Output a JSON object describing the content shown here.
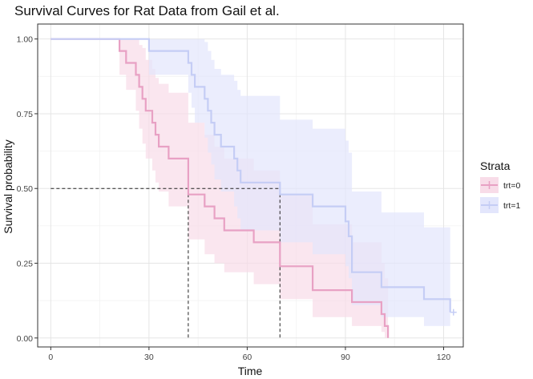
{
  "chart_data": {
    "type": "line",
    "subtype": "kaplan-meier survival curves with confidence bands",
    "title": "Survival Curves for Rat Data from Gail et al.",
    "xlabel": "Time",
    "ylabel": "Survival probability",
    "xlim": [
      -4,
      126
    ],
    "ylim": [
      -0.03,
      1.05
    ],
    "xticks": [
      0,
      30,
      60,
      90,
      120
    ],
    "xtick_labels": [
      "0",
      "30",
      "60",
      "90",
      "120"
    ],
    "yticks": [
      0,
      0.25,
      0.5,
      0.75,
      1.0
    ],
    "ytick_labels": [
      "0.00",
      "0.25",
      "0.50",
      "0.75",
      "1.00"
    ],
    "grid": true,
    "legend": {
      "title": "Strata",
      "placement": "right",
      "entries": [
        "trt=0",
        "trt=1"
      ]
    },
    "median_lines": {
      "y": 0.5,
      "x": [
        42,
        70
      ]
    },
    "series": [
      {
        "name": "trt=0",
        "color": "#e8a1c4",
        "band_color": "#f8dce8",
        "steps": [
          [
            0,
            1.0
          ],
          [
            21,
            0.96
          ],
          [
            23,
            0.92
          ],
          [
            26,
            0.88
          ],
          [
            27,
            0.84
          ],
          [
            28,
            0.8
          ],
          [
            29,
            0.76
          ],
          [
            31,
            0.72
          ],
          [
            32,
            0.68
          ],
          [
            33,
            0.64
          ],
          [
            36,
            0.6
          ],
          [
            42,
            0.48
          ],
          [
            47,
            0.44
          ],
          [
            50,
            0.4
          ],
          [
            53,
            0.36
          ],
          [
            62,
            0.32
          ],
          [
            70,
            0.24
          ],
          [
            80,
            0.16
          ],
          [
            92,
            0.12
          ],
          [
            101,
            0.08
          ],
          [
            102,
            0.04
          ],
          [
            103,
            0.0
          ]
        ],
        "upper": [
          [
            0,
            1.0
          ],
          [
            21,
            1.0
          ],
          [
            23,
            1.0
          ],
          [
            26,
            1.0
          ],
          [
            27,
            0.98
          ],
          [
            28,
            0.97
          ],
          [
            29,
            0.93
          ],
          [
            31,
            0.9
          ],
          [
            32,
            0.87
          ],
          [
            33,
            0.85
          ],
          [
            36,
            0.82
          ],
          [
            42,
            0.72
          ],
          [
            47,
            0.68
          ],
          [
            50,
            0.64
          ],
          [
            53,
            0.6
          ],
          [
            62,
            0.56
          ],
          [
            70,
            0.48
          ],
          [
            80,
            0.38
          ],
          [
            92,
            0.32
          ],
          [
            101,
            0.25
          ],
          [
            102,
            0.2
          ],
          [
            103,
            0.15
          ]
        ],
        "lower": [
          [
            0,
            1.0
          ],
          [
            21,
            0.88
          ],
          [
            23,
            0.83
          ],
          [
            26,
            0.76
          ],
          [
            27,
            0.7
          ],
          [
            28,
            0.65
          ],
          [
            29,
            0.6
          ],
          [
            31,
            0.56
          ],
          [
            32,
            0.52
          ],
          [
            33,
            0.49
          ],
          [
            36,
            0.44
          ],
          [
            42,
            0.33
          ],
          [
            47,
            0.28
          ],
          [
            50,
            0.25
          ],
          [
            53,
            0.22
          ],
          [
            62,
            0.18
          ],
          [
            70,
            0.13
          ],
          [
            80,
            0.07
          ],
          [
            92,
            0.04
          ],
          [
            101,
            0.02
          ],
          [
            102,
            0.0
          ],
          [
            103,
            0.0
          ]
        ]
      },
      {
        "name": "trt=1",
        "color": "#c5cdf5",
        "band_color": "#e3e6fc",
        "censor": [
          [
            123,
            0.086
          ]
        ],
        "steps": [
          [
            0,
            1.0
          ],
          [
            30,
            0.96
          ],
          [
            42,
            0.92
          ],
          [
            43,
            0.88
          ],
          [
            44,
            0.84
          ],
          [
            47,
            0.8
          ],
          [
            48,
            0.76
          ],
          [
            49,
            0.72
          ],
          [
            50,
            0.68
          ],
          [
            52,
            0.64
          ],
          [
            56,
            0.6
          ],
          [
            57,
            0.56
          ],
          [
            58,
            0.52
          ],
          [
            70,
            0.48
          ],
          [
            80,
            0.44
          ],
          [
            90,
            0.39
          ],
          [
            91,
            0.34
          ],
          [
            92,
            0.22
          ],
          [
            101,
            0.17
          ],
          [
            114,
            0.13
          ],
          [
            122,
            0.086
          ]
        ],
        "upper": [
          [
            0,
            1.0
          ],
          [
            30,
            1.0
          ],
          [
            42,
            1.0
          ],
          [
            43,
            1.0
          ],
          [
            44,
            1.0
          ],
          [
            47,
            0.99
          ],
          [
            48,
            0.96
          ],
          [
            49,
            0.93
          ],
          [
            50,
            0.9
          ],
          [
            52,
            0.88
          ],
          [
            56,
            0.86
          ],
          [
            57,
            0.83
          ],
          [
            58,
            0.81
          ],
          [
            70,
            0.73
          ],
          [
            80,
            0.7
          ],
          [
            90,
            0.66
          ],
          [
            91,
            0.62
          ],
          [
            92,
            0.49
          ],
          [
            101,
            0.42
          ],
          [
            114,
            0.37
          ],
          [
            122,
            0.37
          ]
        ],
        "lower": [
          [
            0,
            1.0
          ],
          [
            30,
            0.88
          ],
          [
            42,
            0.82
          ],
          [
            43,
            0.77
          ],
          [
            44,
            0.72
          ],
          [
            47,
            0.67
          ],
          [
            48,
            0.62
          ],
          [
            49,
            0.58
          ],
          [
            50,
            0.53
          ],
          [
            52,
            0.49
          ],
          [
            56,
            0.44
          ],
          [
            57,
            0.4
          ],
          [
            58,
            0.36
          ],
          [
            70,
            0.32
          ],
          [
            80,
            0.28
          ],
          [
            90,
            0.24
          ],
          [
            91,
            0.2
          ],
          [
            92,
            0.11
          ],
          [
            101,
            0.07
          ],
          [
            114,
            0.04
          ],
          [
            122,
            0.04
          ]
        ]
      }
    ]
  }
}
